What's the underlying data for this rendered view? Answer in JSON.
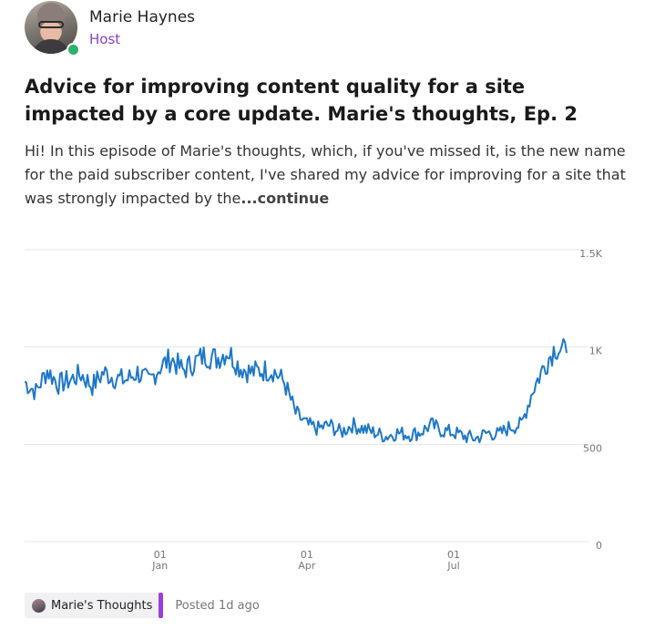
{
  "author": {
    "name": "Marie Haynes",
    "role": "Host",
    "online_color": "#2fb36b",
    "role_color": "#8a3fc8"
  },
  "post": {
    "title": "Advice for improving content quality for a site impacted by a core update. Marie's thoughts, Ep. 2",
    "excerpt": "Hi! In this episode of Marie's thoughts, which, if you've missed it, is the new name for the paid subscriber content, I've shared my advice for improving for a site that was strongly impacted by the",
    "continue_label": "...continue"
  },
  "footer": {
    "tag_label": "Marie's Thoughts",
    "tag_accent": "#9b3fe0",
    "posted": "Posted 1d ago"
  },
  "chart_data": {
    "type": "line",
    "title": "",
    "xlabel": "",
    "ylabel": "",
    "ylim": [
      0,
      1500
    ],
    "yticks": [
      0,
      500,
      1000,
      1500
    ],
    "ytick_labels": [
      "0",
      "500",
      "1K",
      "1.5K"
    ],
    "y_axis_position": "right",
    "grid": true,
    "x_ticks": [
      {
        "label": [
          "01",
          "Jan"
        ],
        "week": 12
      },
      {
        "label": [
          "01",
          "Apr"
        ],
        "week": 25
      },
      {
        "label": [
          "01",
          "Jul"
        ],
        "week": 38
      }
    ],
    "line_color": "#1f78c8",
    "series": [
      {
        "values": [
          820,
          770,
          880,
          810,
          830,
          860,
          800,
          870,
          840,
          830,
          870,
          820,
          900,
          940,
          880,
          920,
          960,
          940,
          980,
          900,
          870,
          880,
          880,
          820,
          660,
          600,
          580,
          600,
          560,
          600,
          580,
          560,
          540,
          560,
          550,
          560,
          600,
          570,
          560,
          540,
          530,
          560,
          550,
          590,
          600,
          780,
          900,
          1000,
          970
        ]
      }
    ]
  }
}
